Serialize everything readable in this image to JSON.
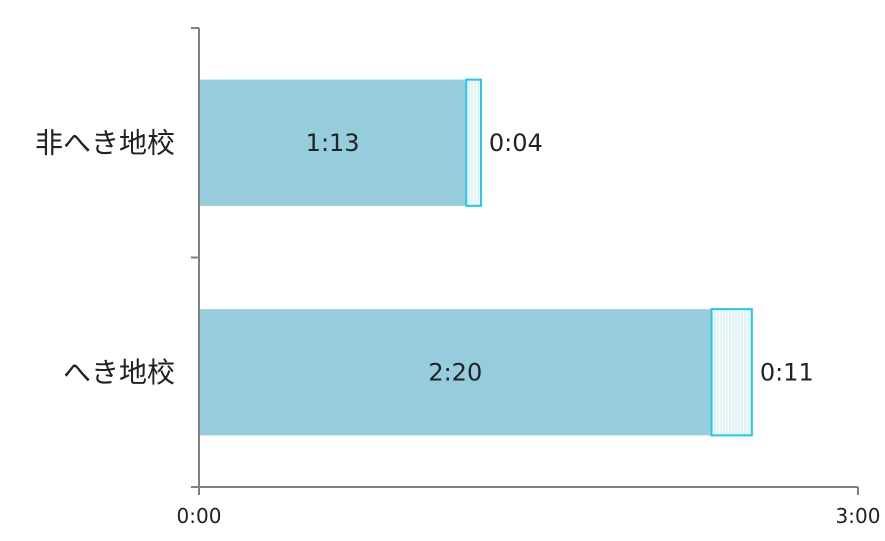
{
  "chart_data": {
    "type": "bar",
    "orientation": "horizontal",
    "stacked": true,
    "categories": [
      "非へき地校",
      "へき地校"
    ],
    "series": [
      {
        "values": [
          1.2167,
          2.3333
        ],
        "value_labels": [
          "1:13",
          "2:20"
        ],
        "color": "#96cddc",
        "pattern": "solid"
      },
      {
        "values": [
          0.0667,
          0.1833
        ],
        "value_labels": [
          "0:04",
          "0:11"
        ],
        "color": "#1ec8f0",
        "pattern": "vertical-hatch"
      }
    ],
    "xlim": [
      0,
      3
    ],
    "xtick_labels": [
      "0:00",
      "3:00"
    ],
    "title": "",
    "xlabel": "",
    "ylabel": "",
    "grid": false,
    "legend": "none"
  }
}
